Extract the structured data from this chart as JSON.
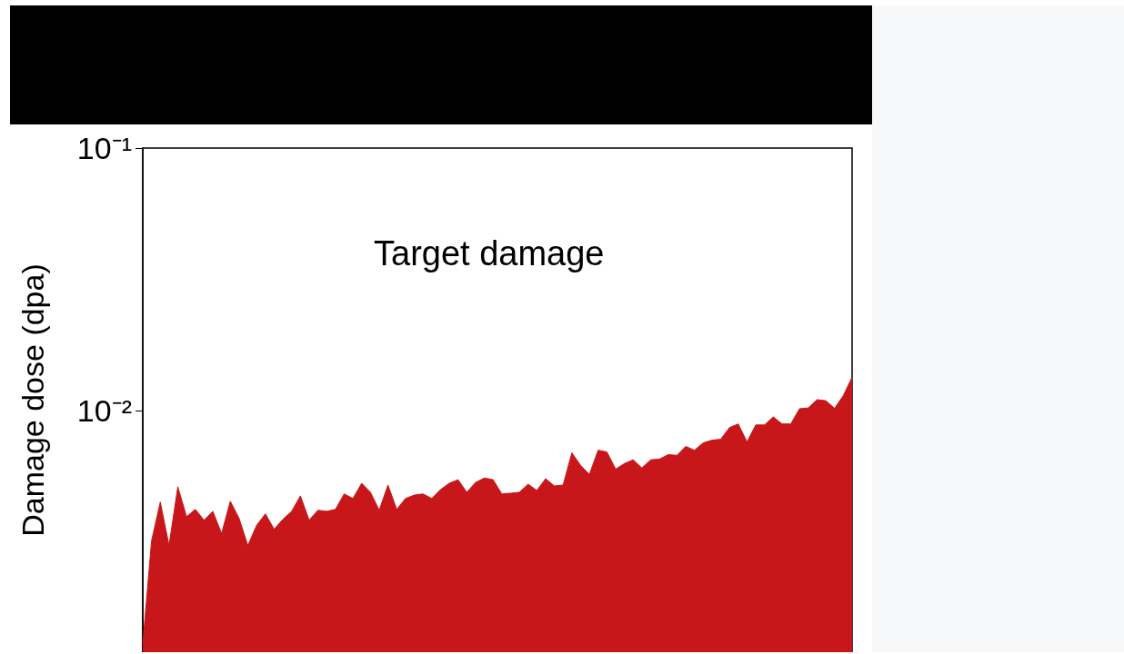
{
  "chart_data": {
    "type": "area",
    "title": "Target damage",
    "ylabel": "Damage dose (dpa)",
    "log": "y",
    "grid": false,
    "tick_labels": "y",
    "ylim": [
      0.0012,
      0.1
    ],
    "yticks": [
      {
        "value": 0.01,
        "label": "10⁻²"
      },
      {
        "value": 0.1,
        "label": "10⁻¹"
      }
    ],
    "categories": [
      null,
      null,
      null,
      null,
      null,
      null,
      null,
      null,
      null,
      null,
      null,
      null,
      null,
      null,
      null,
      null,
      null,
      null,
      null,
      null,
      null,
      null,
      null,
      null,
      null,
      null,
      null,
      null,
      null,
      null,
      null,
      null,
      null,
      null,
      null,
      null,
      null,
      null,
      null,
      null,
      null,
      null,
      null,
      null,
      null,
      null,
      null,
      null,
      null,
      null,
      null,
      null,
      null,
      null,
      null,
      null,
      null,
      null,
      null,
      null,
      null,
      null,
      null,
      null,
      null,
      null,
      null,
      null,
      null,
      null,
      null,
      null,
      null,
      null,
      null,
      null,
      null,
      null,
      null,
      null,
      null,
      null
    ],
    "series": [
      {
        "color": "#c8171a",
        "values": [
          0.00129,
          0.00318,
          0.00448,
          0.00306,
          0.00512,
          0.00394,
          0.0042,
          0.00382,
          0.00413,
          0.0034,
          0.00451,
          0.00388,
          0.00306,
          0.00365,
          0.00404,
          0.00353,
          0.00385,
          0.00413,
          0.00473,
          0.00382,
          0.00417,
          0.00413,
          0.0042,
          0.00481,
          0.00462,
          0.00528,
          0.00488,
          0.00417,
          0.0052,
          0.0042,
          0.00462,
          0.00476,
          0.00481,
          0.00462,
          0.005,
          0.00528,
          0.00545,
          0.00488,
          0.00532,
          0.00553,
          0.00545,
          0.00481,
          0.00484,
          0.00488,
          0.00524,
          0.00496,
          0.0055,
          0.00516,
          0.0052,
          0.0069,
          0.00618,
          0.00571,
          0.00706,
          0.00695,
          0.00598,
          0.00628,
          0.00649,
          0.00604,
          0.00649,
          0.00653,
          0.00679,
          0.00675,
          0.0073,
          0.00706,
          0.00753,
          0.00771,
          0.00777,
          0.00861,
          0.00889,
          0.00759,
          0.00881,
          0.00881,
          0.00946,
          0.00889,
          0.00889,
          0.01016,
          0.01023,
          0.011,
          0.0109,
          0.0102,
          0.0114,
          0.0134
        ]
      }
    ]
  }
}
